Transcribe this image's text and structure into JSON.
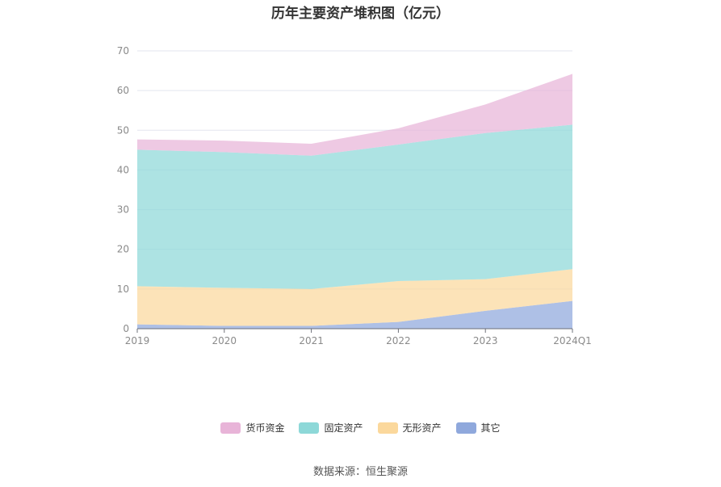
{
  "title": "历年主要资产堆积图（亿元）",
  "source_note": "数据来源：恒生聚源",
  "chart_data": {
    "type": "area",
    "stacked": true,
    "title": "历年主要资产堆积图（亿元）",
    "xlabel": "",
    "ylabel": "",
    "categories": [
      "2019",
      "2020",
      "2021",
      "2022",
      "2023",
      "2024Q1"
    ],
    "ylim": [
      0,
      70
    ],
    "yticks": [
      0,
      10,
      20,
      30,
      40,
      50,
      60,
      70
    ],
    "grid": true,
    "legend_position": "bottom",
    "series": [
      {
        "name": "其它",
        "color": "#8fa8dc",
        "values": [
          1.1,
          0.7,
          0.7,
          1.7,
          4.5,
          7.0
        ]
      },
      {
        "name": "无形资产",
        "color": "#fbd89c",
        "values": [
          9.6,
          9.6,
          9.3,
          10.3,
          8.0,
          8.0
        ]
      },
      {
        "name": "固定资产",
        "color": "#8dd8d8",
        "values": [
          34.4,
          34.2,
          33.6,
          34.4,
          36.8,
          36.4
        ]
      },
      {
        "name": "货币资金",
        "color": "#e8b4d8",
        "values": [
          2.6,
          2.9,
          3.0,
          4.1,
          7.2,
          12.8
        ]
      }
    ],
    "legend_order": [
      "货币资金",
      "固定资产",
      "无形资产",
      "其它"
    ]
  }
}
